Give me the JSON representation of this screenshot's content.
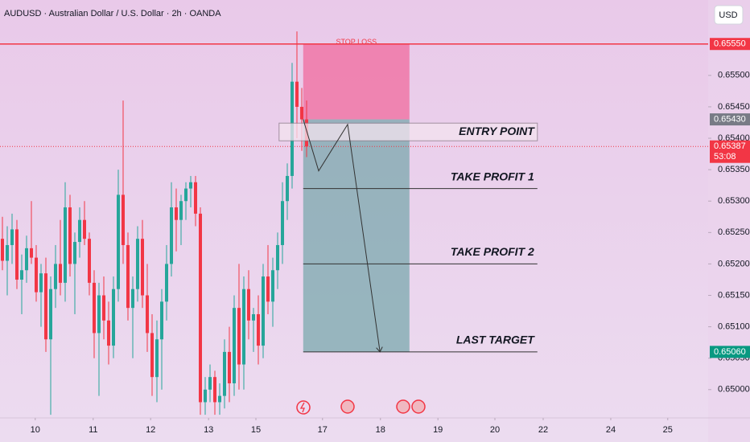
{
  "chart_data": {
    "type": "candlestick",
    "title": "AUDUSD · Australian Dollar / U.S. Dollar · 2h · OANDA",
    "currency": "USD",
    "up_color": "#26a69a",
    "down_color": "#f23645",
    "xlim": [
      -0.5,
      146.17
    ],
    "ylim": [
      0.64955,
      0.6562
    ],
    "xticks": [
      {
        "value": 6.8,
        "label": "10"
      },
      {
        "value": 18.8,
        "label": "11"
      },
      {
        "value": 30.7,
        "label": "12"
      },
      {
        "value": 42.7,
        "label": "13"
      },
      {
        "value": 52.5,
        "label": "15"
      },
      {
        "value": 66.3,
        "label": "17"
      },
      {
        "value": 78.3,
        "label": "18"
      },
      {
        "value": 90.2,
        "label": "19"
      },
      {
        "value": 102,
        "label": "20"
      },
      {
        "value": 112,
        "label": "22"
      },
      {
        "value": 126,
        "label": "24"
      },
      {
        "value": 137.8,
        "label": "25"
      }
    ],
    "yticks": [
      {
        "value": 0.65,
        "label": "0.65000"
      },
      {
        "value": 0.6505,
        "label": "0.65050"
      },
      {
        "value": 0.651,
        "label": "0.65100"
      },
      {
        "value": 0.6515,
        "label": "0.65150"
      },
      {
        "value": 0.652,
        "label": "0.65200"
      },
      {
        "value": 0.6525,
        "label": "0.65250"
      },
      {
        "value": 0.653,
        "label": "0.65300"
      },
      {
        "value": 0.6535,
        "label": "0.65350"
      },
      {
        "value": 0.654,
        "label": "0.65400"
      },
      {
        "value": 0.6545,
        "label": "0.65450"
      },
      {
        "value": 0.655,
        "label": "0.65500"
      }
    ],
    "candles": [
      [
        0.6524,
        0.65275,
        0.6519,
        0.65205
      ],
      [
        0.65205,
        0.6526,
        0.6515,
        0.6523
      ],
      [
        0.6523,
        0.6528,
        0.652,
        0.65255
      ],
      [
        0.65255,
        0.6527,
        0.6516,
        0.65175
      ],
      [
        0.65175,
        0.65215,
        0.6512,
        0.6519
      ],
      [
        0.6519,
        0.65245,
        0.6517,
        0.65225
      ],
      [
        0.65225,
        0.653,
        0.652,
        0.6521
      ],
      [
        0.6521,
        0.6523,
        0.6514,
        0.65155
      ],
      [
        0.65155,
        0.652,
        0.651,
        0.65185
      ],
      [
        0.65185,
        0.6521,
        0.6506,
        0.6508
      ],
      [
        0.6508,
        0.6518,
        0.6496,
        0.6516
      ],
      [
        0.6516,
        0.6523,
        0.6513,
        0.652
      ],
      [
        0.652,
        0.6527,
        0.6515,
        0.6517
      ],
      [
        0.6517,
        0.6533,
        0.6514,
        0.6529
      ],
      [
        0.6529,
        0.6531,
        0.6518,
        0.652
      ],
      [
        0.652,
        0.6525,
        0.6512,
        0.65235
      ],
      [
        0.65235,
        0.6529,
        0.6521,
        0.6527
      ],
      [
        0.6527,
        0.653,
        0.6523,
        0.6524
      ],
      [
        0.6524,
        0.6525,
        0.6515,
        0.6517
      ],
      [
        0.6517,
        0.6519,
        0.6505,
        0.6509
      ],
      [
        0.6509,
        0.6517,
        0.6499,
        0.6515
      ],
      [
        0.6515,
        0.6518,
        0.6508,
        0.6511
      ],
      [
        0.6511,
        0.6514,
        0.6504,
        0.6507
      ],
      [
        0.6507,
        0.6518,
        0.6505,
        0.6516
      ],
      [
        0.6516,
        0.6535,
        0.6514,
        0.6531
      ],
      [
        0.6531,
        0.6546,
        0.652,
        0.6523
      ],
      [
        0.6523,
        0.6525,
        0.6511,
        0.6513
      ],
      [
        0.6513,
        0.6518,
        0.6505,
        0.6516
      ],
      [
        0.6516,
        0.6526,
        0.6514,
        0.6524
      ],
      [
        0.6524,
        0.6527,
        0.6513,
        0.6515
      ],
      [
        0.6515,
        0.652,
        0.6506,
        0.6509
      ],
      [
        0.6509,
        0.6512,
        0.6499,
        0.6502
      ],
      [
        0.6502,
        0.6511,
        0.6498,
        0.6508
      ],
      [
        0.6508,
        0.6516,
        0.65,
        0.6514
      ],
      [
        0.6514,
        0.6523,
        0.6511,
        0.652
      ],
      [
        0.652,
        0.6533,
        0.6518,
        0.6529
      ],
      [
        0.6529,
        0.6532,
        0.6522,
        0.6527
      ],
      [
        0.6527,
        0.6531,
        0.6523,
        0.653
      ],
      [
        0.653,
        0.6533,
        0.6527,
        0.6532
      ],
      [
        0.6532,
        0.6534,
        0.6529,
        0.6533
      ],
      [
        0.6533,
        0.6534,
        0.6526,
        0.6528
      ],
      [
        0.6528,
        0.6529,
        0.6496,
        0.6498
      ],
      [
        0.6498,
        0.6502,
        0.6496,
        0.65
      ],
      [
        0.65,
        0.6504,
        0.6498,
        0.6502
      ],
      [
        0.6502,
        0.6503,
        0.6496,
        0.6498
      ],
      [
        0.6498,
        0.6501,
        0.6496,
        0.6499
      ],
      [
        0.6499,
        0.6508,
        0.6497,
        0.6506
      ],
      [
        0.6506,
        0.651,
        0.6498,
        0.6501
      ],
      [
        0.6501,
        0.6515,
        0.6499,
        0.6513
      ],
      [
        0.6513,
        0.652,
        0.65,
        0.6504
      ],
      [
        0.6504,
        0.6518,
        0.65,
        0.6516
      ],
      [
        0.6516,
        0.6519,
        0.6508,
        0.6511
      ],
      [
        0.6511,
        0.6513,
        0.6506,
        0.6512
      ],
      [
        0.6512,
        0.6515,
        0.6504,
        0.6507
      ],
      [
        0.6507,
        0.652,
        0.6505,
        0.6518
      ],
      [
        0.6518,
        0.6523,
        0.6512,
        0.6514
      ],
      [
        0.6514,
        0.6521,
        0.651,
        0.6519
      ],
      [
        0.6519,
        0.6525,
        0.6516,
        0.6523
      ],
      [
        0.6523,
        0.6533,
        0.652,
        0.653
      ],
      [
        0.653,
        0.6536,
        0.6527,
        0.6534
      ],
      [
        0.6534,
        0.6552,
        0.6532,
        0.6549
      ],
      [
        0.6549,
        0.6557,
        0.654,
        0.6545
      ],
      [
        0.6545,
        0.6548,
        0.6538,
        0.6543
      ],
      [
        0.6543,
        0.6546,
        0.6537,
        0.65387
      ]
    ],
    "position": {
      "x_start": 62.3,
      "x_end": 84.3,
      "stop": 0.6555,
      "entry": 0.6543,
      "target": 0.6506
    },
    "stop_label": "STOP LOSS",
    "levels": [
      {
        "label": "ENTRY POINT",
        "value": 0.6541,
        "x_start": 62.3,
        "x_end": 110.8
      },
      {
        "label": "TAKE PROFIT 1",
        "value": 0.6532,
        "x_start": 62.3,
        "x_end": 110.8
      },
      {
        "label": "TAKE PROFIT 2",
        "value": 0.652,
        "x_start": 62.3,
        "x_end": 110.8
      },
      {
        "label": "LAST TARGET",
        "value": 0.6506,
        "x_start": 62.3,
        "x_end": 110.8
      }
    ],
    "projection": [
      [
        62.3,
        0.6543
      ],
      [
        65.5,
        0.65348
      ],
      [
        71.5,
        0.65422
      ],
      [
        78.2,
        0.6506
      ]
    ],
    "current_price": 0.65387,
    "price_labels": [
      {
        "value": 0.6555,
        "label": "0.65550",
        "color": "#f23645"
      },
      {
        "value": 0.6543,
        "label": "0.65430",
        "color": "#787b86"
      },
      {
        "value": 0.65387,
        "label": "0.65387",
        "color": "#f23645",
        "timer": "53:08"
      },
      {
        "value": 0.6506,
        "label": "0.65060",
        "color": "#089981"
      }
    ]
  }
}
